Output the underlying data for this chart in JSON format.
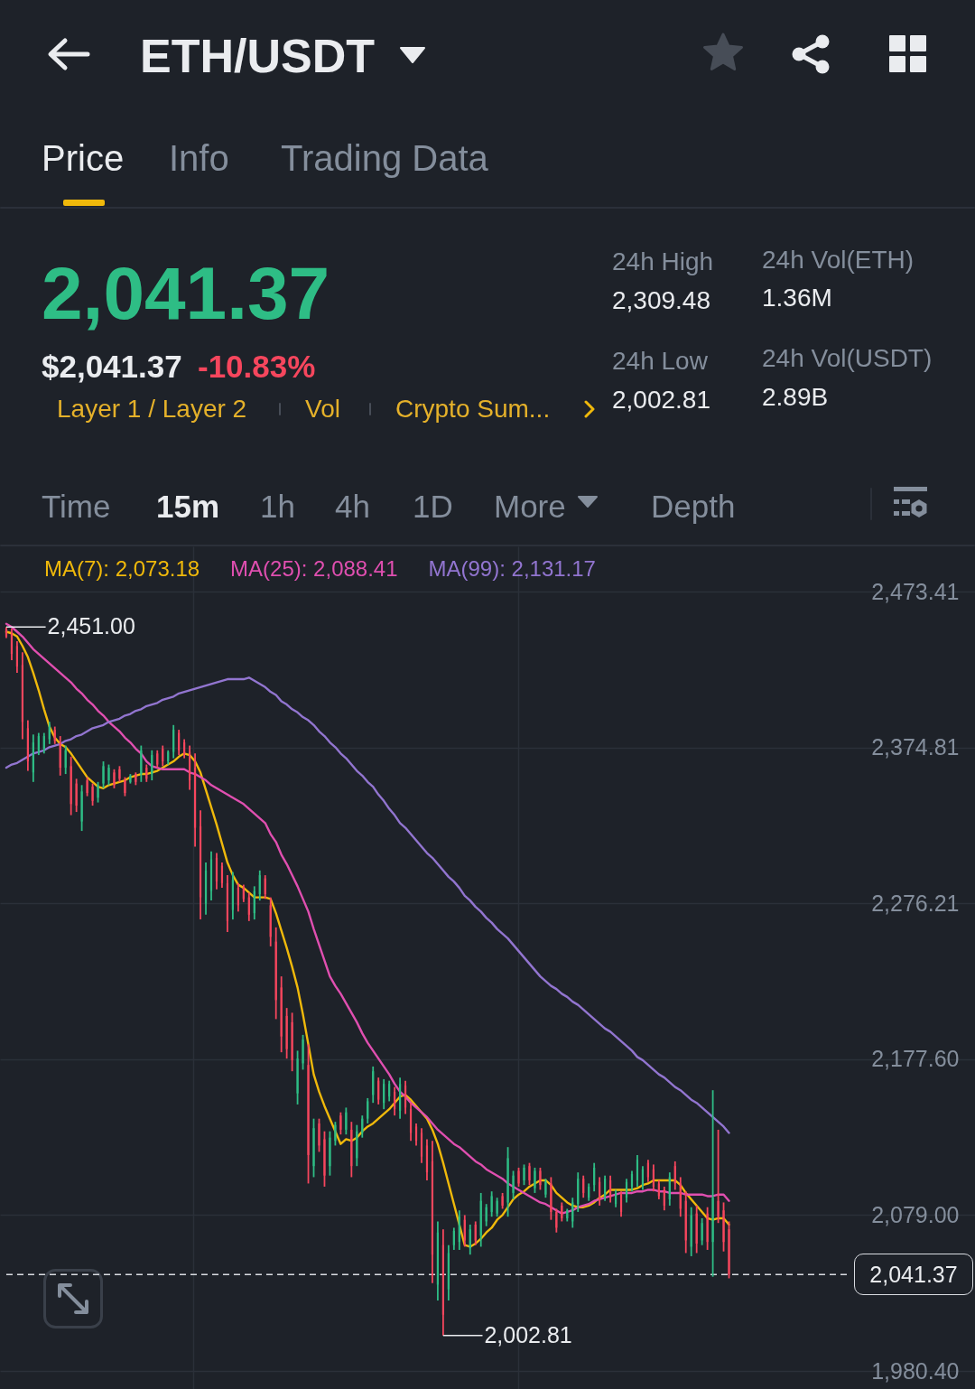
{
  "chart_data": {
    "type": "candlestick",
    "title": "ETH/USDT",
    "categories": [
      null,
      null,
      null,
      null,
      null,
      null,
      null,
      null,
      null,
      null,
      null,
      null,
      null,
      null,
      null,
      null,
      null,
      null,
      null,
      null,
      null,
      null,
      null,
      null,
      null,
      null,
      null,
      null,
      null,
      null,
      null,
      null,
      null,
      null,
      null,
      null,
      null,
      null,
      null,
      null,
      null,
      null,
      null,
      null,
      null,
      null,
      null,
      null,
      null,
      null,
      null,
      null,
      null,
      null,
      null,
      null,
      null,
      null,
      null,
      null,
      null,
      null,
      null,
      null,
      null,
      null,
      null,
      null,
      null,
      null,
      null,
      null,
      null,
      null,
      null,
      null,
      null,
      null,
      null,
      null,
      null,
      null,
      null,
      null,
      null,
      null,
      null,
      null,
      null,
      null,
      null,
      null,
      null,
      null,
      null,
      null,
      null,
      null,
      null,
      null,
      null,
      null,
      null,
      null,
      null,
      null,
      null,
      null,
      null,
      null,
      null,
      null,
      null,
      null,
      null,
      null,
      null,
      null,
      null,
      null,
      null,
      null,
      null,
      null,
      null,
      null,
      null,
      null,
      null,
      null,
      null,
      null,
      null,
      null,
      null
    ],
    "ohlc": [
      [
        2450,
        2451,
        2444,
        2445
      ],
      [
        2447,
        2450,
        2430,
        2434
      ],
      [
        2439,
        2442,
        2422,
        2426
      ],
      [
        2427,
        2435,
        2380,
        2391
      ],
      [
        2387,
        2392,
        2360,
        2366
      ],
      [
        2359,
        2383,
        2353,
        2378
      ],
      [
        2373,
        2384,
        2370,
        2382
      ],
      [
        2374,
        2384,
        2371,
        2382
      ],
      [
        2380,
        2391,
        2377,
        2389
      ],
      [
        2386,
        2388,
        2377,
        2379
      ],
      [
        2378,
        2382,
        2357,
        2362
      ],
      [
        2362,
        2376,
        2358,
        2373
      ],
      [
        2363,
        2369,
        2332,
        2339
      ],
      [
        2352,
        2355,
        2334,
        2338
      ],
      [
        2328,
        2351,
        2322,
        2347
      ],
      [
        2354,
        2356,
        2344,
        2346
      ],
      [
        2350,
        2352,
        2338,
        2341
      ],
      [
        2343,
        2353,
        2340,
        2351
      ],
      [
        2352,
        2366,
        2349,
        2363
      ],
      [
        2354,
        2364,
        2351,
        2362
      ],
      [
        2359,
        2361,
        2349,
        2351
      ],
      [
        2361,
        2363,
        2353,
        2355
      ],
      [
        2354,
        2356,
        2344,
        2346
      ],
      [
        2353,
        2358,
        2352,
        2357
      ],
      [
        2358,
        2359,
        2351,
        2353
      ],
      [
        2358,
        2376,
        2353,
        2373
      ],
      [
        2362,
        2364,
        2353,
        2355
      ],
      [
        2358,
        2373,
        2354,
        2370
      ],
      [
        2371,
        2373,
        2362,
        2364
      ],
      [
        2374,
        2376,
        2363,
        2366
      ],
      [
        2366,
        2373,
        2364,
        2372
      ],
      [
        2372,
        2389,
        2368,
        2386
      ],
      [
        2384,
        2386,
        2370,
        2373
      ],
      [
        2378,
        2380,
        2368,
        2370
      ],
      [
        2372,
        2376,
        2348,
        2354
      ],
      [
        2362,
        2371,
        2312,
        2324
      ],
      [
        2325,
        2335,
        2266,
        2280
      ],
      [
        2276,
        2302,
        2269,
        2297
      ],
      [
        2284,
        2309,
        2278,
        2304
      ],
      [
        2305,
        2308,
        2285,
        2290
      ],
      [
        2300,
        2302,
        2286,
        2289
      ],
      [
        2289,
        2294,
        2258,
        2265
      ],
      [
        2272,
        2296,
        2266,
        2291
      ],
      [
        2286,
        2289,
        2271,
        2275
      ],
      [
        2286,
        2288,
        2277,
        2279
      ],
      [
        2280,
        2283,
        2265,
        2269
      ],
      [
        2270,
        2287,
        2266,
        2284
      ],
      [
        2282,
        2297,
        2278,
        2294
      ],
      [
        2292,
        2294,
        2279,
        2282
      ],
      [
        2275,
        2280,
        2249,
        2255
      ],
      [
        2252,
        2261,
        2203,
        2215
      ],
      [
        2223,
        2230,
        2182,
        2192
      ],
      [
        2205,
        2210,
        2178,
        2184
      ],
      [
        2201,
        2207,
        2170,
        2177
      ],
      [
        2156,
        2183,
        2149,
        2178
      ],
      [
        2175,
        2193,
        2171,
        2190
      ],
      [
        2174,
        2187,
        2099,
        2117
      ],
      [
        2110,
        2140,
        2103,
        2134
      ],
      [
        2137,
        2140,
        2119,
        2123
      ],
      [
        2127,
        2132,
        2097,
        2104
      ],
      [
        2110,
        2132,
        2104,
        2128
      ],
      [
        2126,
        2138,
        2123,
        2136
      ],
      [
        2142,
        2144,
        2130,
        2133
      ],
      [
        2133,
        2147,
        2130,
        2144
      ],
      [
        2133,
        2138,
        2103,
        2110
      ],
      [
        2115,
        2136,
        2110,
        2132
      ],
      [
        2131,
        2142,
        2128,
        2140
      ],
      [
        2140,
        2153,
        2137,
        2151
      ],
      [
        2155,
        2173,
        2150,
        2170
      ],
      [
        2164,
        2166,
        2149,
        2152
      ],
      [
        2150,
        2165,
        2146,
        2162
      ],
      [
        2154,
        2164,
        2151,
        2162
      ],
      [
        2157,
        2160,
        2142,
        2146
      ],
      [
        2145,
        2166,
        2140,
        2162
      ],
      [
        2161,
        2164,
        2143,
        2147
      ],
      [
        2146,
        2150,
        2126,
        2131
      ],
      [
        2135,
        2137,
        2123,
        2126
      ],
      [
        2131,
        2134,
        2112,
        2116
      ],
      [
        2123,
        2127,
        2101,
        2106
      ],
      [
        2113,
        2126,
        2036,
        2054
      ],
      [
        2035,
        2075,
        2025,
        2068
      ],
      [
        2060,
        2070,
        2002.81,
        2016
      ],
      [
        2032,
        2060,
        2025,
        2055
      ],
      [
        2060,
        2071,
        2057,
        2069
      ],
      [
        2062,
        2082,
        2057,
        2078
      ],
      [
        2076,
        2079,
        2059,
        2063
      ],
      [
        2058,
        2073,
        2054,
        2070
      ],
      [
        2073,
        2075,
        2060,
        2063
      ],
      [
        2066,
        2093,
        2059,
        2088
      ],
      [
        2075,
        2086,
        2072,
        2084
      ],
      [
        2081,
        2094,
        2078,
        2091
      ],
      [
        2080,
        2090,
        2078,
        2088
      ],
      [
        2091,
        2093,
        2083,
        2085
      ],
      [
        2087,
        2122,
        2078,
        2115
      ],
      [
        2093,
        2107,
        2089,
        2104
      ],
      [
        2107,
        2109,
        2097,
        2099
      ],
      [
        2101,
        2111,
        2098,
        2109
      ],
      [
        2110,
        2112,
        2098,
        2101
      ],
      [
        2096,
        2109,
        2093,
        2107
      ],
      [
        2107,
        2109,
        2095,
        2098
      ],
      [
        2092,
        2102,
        2090,
        2100
      ],
      [
        2099,
        2103,
        2076,
        2081
      ],
      [
        2081,
        2083,
        2068,
        2071
      ],
      [
        2085,
        2087,
        2075,
        2077
      ],
      [
        2077,
        2083,
        2075,
        2082
      ],
      [
        2075,
        2090,
        2071,
        2087
      ],
      [
        2086,
        2106,
        2081,
        2102
      ],
      [
        2102,
        2104,
        2090,
        2093
      ],
      [
        2090,
        2099,
        2088,
        2097
      ],
      [
        2098,
        2112,
        2094,
        2109
      ],
      [
        2100,
        2103,
        2085,
        2089
      ],
      [
        2091,
        2104,
        2088,
        2102
      ],
      [
        2101,
        2104,
        2087,
        2090
      ],
      [
        2086,
        2095,
        2084,
        2093
      ],
      [
        2092,
        2094,
        2078,
        2081
      ],
      [
        2090,
        2102,
        2087,
        2100
      ],
      [
        2097,
        2107,
        2094,
        2105
      ],
      [
        2101,
        2117,
        2097,
        2114
      ],
      [
        2098,
        2110,
        2095,
        2108
      ],
      [
        2112,
        2114,
        2100,
        2103
      ],
      [
        2108,
        2111,
        2094,
        2097
      ],
      [
        2099,
        2101,
        2089,
        2091
      ],
      [
        2095,
        2097,
        2082,
        2085
      ],
      [
        2089,
        2106,
        2085,
        2103
      ],
      [
        2110,
        2113,
        2095,
        2099
      ],
      [
        2099,
        2103,
        2078,
        2083
      ],
      [
        2088,
        2094,
        2055,
        2063
      ],
      [
        2059,
        2084,
        2053,
        2079
      ],
      [
        2080,
        2085,
        2055,
        2061
      ],
      [
        2063,
        2077,
        2060,
        2074
      ],
      [
        2080,
        2084,
        2057,
        2062
      ],
      [
        2062,
        2158,
        2040,
        2090
      ],
      [
        2088,
        2133,
        2074,
        2078
      ],
      [
        2082,
        2087,
        2056,
        2062
      ],
      [
        2070,
        2075,
        2039,
        2041.37
      ]
    ],
    "colors": [
      "#f6465d",
      "#f6465d",
      "#f6465d",
      "#f6465d",
      "#f6465d",
      "#2ebd85",
      "#2ebd85",
      "#2ebd85",
      "#2ebd85",
      "#f6465d",
      "#f6465d",
      "#2ebd85",
      "#f6465d",
      "#f6465d",
      "#2ebd85",
      "#f6465d",
      "#f6465d",
      "#2ebd85",
      "#2ebd85",
      "#2ebd85",
      "#f6465d",
      "#f6465d",
      "#f6465d",
      "#2ebd85",
      "#f6465d",
      "#2ebd85",
      "#f6465d",
      "#2ebd85",
      "#f6465d",
      "#f6465d",
      "#2ebd85",
      "#2ebd85",
      "#f6465d",
      "#f6465d",
      "#f6465d",
      "#f6465d",
      "#f6465d",
      "#2ebd85",
      "#2ebd85",
      "#f6465d",
      "#f6465d",
      "#f6465d",
      "#2ebd85",
      "#f6465d",
      "#f6465d",
      "#f6465d",
      "#2ebd85",
      "#2ebd85",
      "#f6465d",
      "#f6465d",
      "#f6465d",
      "#f6465d",
      "#f6465d",
      "#f6465d",
      "#2ebd85",
      "#2ebd85",
      "#f6465d",
      "#2ebd85",
      "#f6465d",
      "#f6465d",
      "#2ebd85",
      "#2ebd85",
      "#f6465d",
      "#2ebd85",
      "#f6465d",
      "#2ebd85",
      "#2ebd85",
      "#2ebd85",
      "#2ebd85",
      "#f6465d",
      "#2ebd85",
      "#2ebd85",
      "#f6465d",
      "#2ebd85",
      "#f6465d",
      "#f6465d",
      "#f6465d",
      "#f6465d",
      "#f6465d",
      "#f6465d",
      "#2ebd85",
      "#f6465d",
      "#2ebd85",
      "#2ebd85",
      "#2ebd85",
      "#f6465d",
      "#2ebd85",
      "#f6465d",
      "#2ebd85",
      "#2ebd85",
      "#2ebd85",
      "#2ebd85",
      "#f6465d",
      "#2ebd85",
      "#2ebd85",
      "#f6465d",
      "#2ebd85",
      "#f6465d",
      "#2ebd85",
      "#f6465d",
      "#2ebd85",
      "#f6465d",
      "#f6465d",
      "#f6465d",
      "#2ebd85",
      "#2ebd85",
      "#2ebd85",
      "#f6465d",
      "#2ebd85",
      "#2ebd85",
      "#f6465d",
      "#2ebd85",
      "#f6465d",
      "#2ebd85",
      "#f6465d",
      "#2ebd85",
      "#2ebd85",
      "#2ebd85",
      "#2ebd85",
      "#f6465d",
      "#f6465d",
      "#f6465d",
      "#f6465d",
      "#2ebd85",
      "#f6465d",
      "#f6465d",
      "#f6465d",
      "#2ebd85",
      "#f6465d",
      "#2ebd85",
      "#f6465d",
      "#2ebd85",
      "#f6465d",
      "#f6465d",
      "#f6465d"
    ],
    "series": [
      {
        "name": "MA(7): 2,073.18",
        "type": "line",
        "color": "#f0b90b",
        "values": [
          2448,
          2447,
          2445,
          2439,
          2432,
          2422,
          2411,
          2399,
          2388,
          2381,
          2377,
          2375,
          2371,
          2366,
          2361,
          2356,
          2353,
          2350,
          2349,
          2351,
          2352,
          2353,
          2354,
          2356,
          2357,
          2358,
          2358,
          2359,
          2360,
          2362,
          2364,
          2366,
          2369,
          2371,
          2370,
          2366,
          2359,
          2348,
          2337,
          2326,
          2314,
          2302,
          2294,
          2288,
          2286,
          2283,
          2280,
          2280,
          2280,
          2279,
          2270,
          2259,
          2248,
          2236,
          2223,
          2206,
          2187,
          2168,
          2157,
          2148,
          2140,
          2132,
          2124,
          2127,
          2126,
          2128,
          2132,
          2135,
          2137,
          2140,
          2143,
          2146,
          2150,
          2154,
          2155,
          2152,
          2148,
          2144,
          2140,
          2133,
          2124,
          2112,
          2099,
          2086,
          2073,
          2060,
          2059,
          2061,
          2064,
          2068,
          2071,
          2076,
          2079,
          2084,
          2089,
          2092,
          2094,
          2097,
          2099,
          2101,
          2101,
          2098,
          2093,
          2090,
          2087,
          2085,
          2084,
          2084,
          2085,
          2087,
          2090,
          2092,
          2095,
          2095,
          2095,
          2095,
          2095,
          2096,
          2098,
          2099,
          2101,
          2101,
          2101,
          2101,
          2101,
          2098,
          2093,
          2089,
          2085,
          2081,
          2077,
          2076,
          2077,
          2077,
          2073
        ]
      },
      {
        "name": "MA(25): 2,088.41",
        "type": "line",
        "color": "#e04fb0",
        "values": [
          2453,
          2451,
          2448,
          2445,
          2441,
          2437,
          2434,
          2431,
          2428,
          2425,
          2422,
          2419,
          2416,
          2412,
          2409,
          2405,
          2402,
          2398,
          2395,
          2391,
          2388,
          2385,
          2381,
          2378,
          2374,
          2371,
          2366,
          2363,
          2362,
          2361,
          2361,
          2361,
          2361,
          2361,
          2359,
          2358,
          2356,
          2354,
          2351,
          2349,
          2347,
          2345,
          2343,
          2341,
          2339,
          2336,
          2333,
          2330,
          2327,
          2320,
          2315,
          2307,
          2301,
          2294,
          2287,
          2279,
          2271,
          2260,
          2250,
          2240,
          2230,
          2224,
          2219,
          2213,
          2207,
          2201,
          2194,
          2188,
          2183,
          2178,
          2173,
          2168,
          2162,
          2157,
          2154,
          2150,
          2147,
          2144,
          2141,
          2137,
          2133,
          2130,
          2127,
          2124,
          2122,
          2119,
          2116,
          2113,
          2111,
          2108,
          2106,
          2104,
          2102,
          2099,
          2097,
          2095,
          2093,
          2091,
          2089,
          2087,
          2086,
          2084,
          2082,
          2080,
          2081,
          2082,
          2084,
          2085,
          2086,
          2088,
          2089,
          2090,
          2091,
          2092,
          2093,
          2093,
          2093,
          2094,
          2094,
          2095,
          2095,
          2094,
          2094,
          2093,
          2093,
          2093,
          2092,
          2092,
          2092,
          2092,
          2091,
          2091,
          2092,
          2092,
          2088
        ]
      },
      {
        "name": "MA(99): 2,131.17",
        "type": "line",
        "color": "#9275d0",
        "values": [
          2362,
          2364,
          2365,
          2367,
          2369,
          2371,
          2372,
          2373,
          2375,
          2376,
          2377,
          2379,
          2380,
          2382,
          2383,
          2385,
          2387,
          2388,
          2389,
          2391,
          2392,
          2393,
          2395,
          2396,
          2398,
          2399,
          2401,
          2402,
          2403,
          2405,
          2406,
          2407,
          2409,
          2410,
          2411,
          2412,
          2413,
          2414,
          2415,
          2416,
          2417,
          2418,
          2418,
          2418,
          2418,
          2419,
          2417,
          2415,
          2413,
          2410,
          2408,
          2404,
          2402,
          2399,
          2397,
          2394,
          2392,
          2389,
          2385,
          2382,
          2378,
          2375,
          2371,
          2368,
          2364,
          2360,
          2357,
          2353,
          2350,
          2345,
          2341,
          2336,
          2332,
          2327,
          2324,
          2320,
          2316,
          2312,
          2308,
          2305,
          2301,
          2297,
          2293,
          2290,
          2286,
          2281,
          2278,
          2274,
          2271,
          2267,
          2264,
          2260,
          2257,
          2254,
          2250,
          2246,
          2242,
          2238,
          2234,
          2230,
          2227,
          2224,
          2222,
          2219,
          2217,
          2214,
          2212,
          2209,
          2206,
          2203,
          2200,
          2197,
          2195,
          2192,
          2189,
          2186,
          2183,
          2179,
          2177,
          2174,
          2171,
          2168,
          2166,
          2163,
          2160,
          2158,
          2155,
          2152,
          2150,
          2147,
          2144,
          2141,
          2138,
          2135,
          2131
        ]
      }
    ],
    "ylim": [
      1969,
      2502
    ],
    "yticks": [
      {
        "value": 2473.41,
        "label": "2,473.41"
      },
      {
        "value": 2374.81,
        "label": "2,374.81"
      },
      {
        "value": 2276.21,
        "label": "2,276.21"
      },
      {
        "value": 2177.6,
        "label": "2,177.60"
      },
      {
        "value": 2079,
        "label": "2,079.00"
      },
      {
        "value": 1980.4,
        "label": "1,980.40"
      }
    ],
    "grid": true,
    "legend": "top left",
    "tick_labels": "y",
    "ref_lines": [
      {
        "axis": "y",
        "value": 2041.37,
        "line_style": "dashed",
        "color": "#d9dce1"
      }
    ],
    "annotations": [
      "2,451.00",
      "2,002.81",
      "2,041.37",
      "Price",
      "Info",
      "Trading Data",
      "2,041.37",
      "$2,041.37",
      "-10.83%",
      "Layer 1 / Layer 2",
      "Vol",
      "Crypto Sum...",
      "24h High",
      "2,309.48",
      "24h Low",
      "2,002.81",
      "24h Vol(ETH)",
      "1.36M",
      "24h Vol(USDT)",
      "2.89B",
      "Time",
      "15m",
      "1h",
      "4h",
      "1D",
      "More",
      "Depth"
    ]
  }
}
